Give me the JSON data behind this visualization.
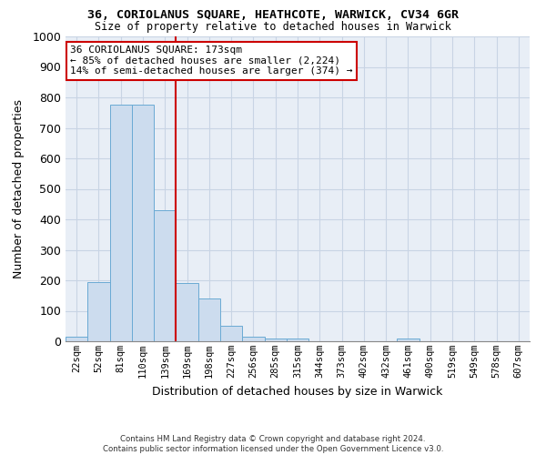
{
  "title1": "36, CORIOLANUS SQUARE, HEATHCOTE, WARWICK, CV34 6GR",
  "title2": "Size of property relative to detached houses in Warwick",
  "xlabel": "Distribution of detached houses by size in Warwick",
  "ylabel": "Number of detached properties",
  "bar_labels": [
    "22sqm",
    "52sqm",
    "81sqm",
    "110sqm",
    "139sqm",
    "169sqm",
    "198sqm",
    "227sqm",
    "256sqm",
    "285sqm",
    "315sqm",
    "344sqm",
    "373sqm",
    "402sqm",
    "432sqm",
    "461sqm",
    "490sqm",
    "519sqm",
    "549sqm",
    "578sqm",
    "607sqm"
  ],
  "bar_values": [
    15,
    195,
    775,
    775,
    430,
    190,
    140,
    50,
    15,
    10,
    8,
    0,
    0,
    0,
    0,
    8,
    0,
    0,
    0,
    0,
    0
  ],
  "bar_color": "#ccdcee",
  "bar_edge_color": "#6aaad4",
  "red_line_x": 4.5,
  "red_line_color": "#cc0000",
  "annotation_line1": "36 CORIOLANUS SQUARE: 173sqm",
  "annotation_line2": "← 85% of detached houses are smaller (2,224)",
  "annotation_line3": "14% of semi-detached houses are larger (374) →",
  "annotation_box_color": "#ffffff",
  "annotation_box_edge": "#cc0000",
  "ylim": [
    0,
    1000
  ],
  "yticks": [
    0,
    100,
    200,
    300,
    400,
    500,
    600,
    700,
    800,
    900,
    1000
  ],
  "footer_line1": "Contains HM Land Registry data © Crown copyright and database right 2024.",
  "footer_line2": "Contains public sector information licensed under the Open Government Licence v3.0.",
  "grid_color": "#c8d4e4",
  "background_color": "#e8eef6"
}
